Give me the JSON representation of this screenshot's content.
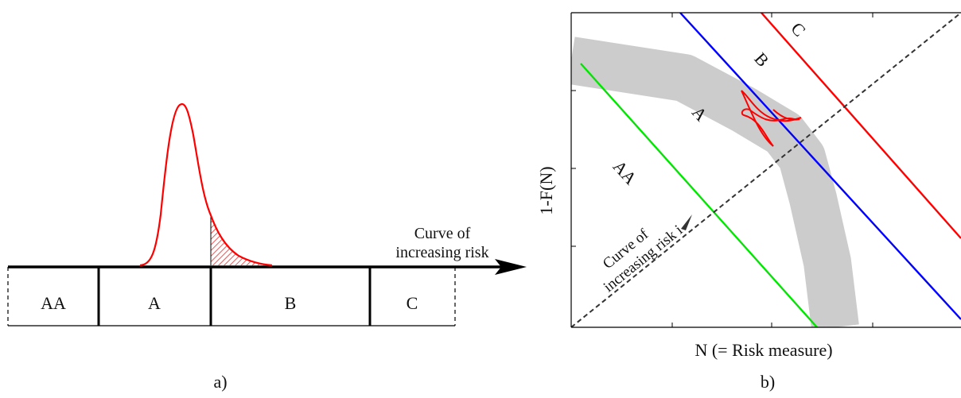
{
  "panel_a": {
    "caption": "a)",
    "categories": [
      "AA",
      "A",
      "B",
      "C"
    ],
    "axis_label_line1": "Curve of",
    "axis_label_line2": "increasing risk"
  },
  "panel_b": {
    "caption": "b)",
    "xlabel": "N (= Risk measure)",
    "ylabel": "1-F(N)",
    "region_labels": [
      "AA",
      "A",
      "B",
      "C"
    ],
    "curve_label_line1": "Curve of",
    "curve_label_line2": "increasing risk i",
    "colors": {
      "boundary_aa_a": "#00e600",
      "boundary_a_b": "#0000ff",
      "boundary_b_c": "#ff0000",
      "distribution": "#ff0000",
      "band": "#cccccc"
    }
  }
}
